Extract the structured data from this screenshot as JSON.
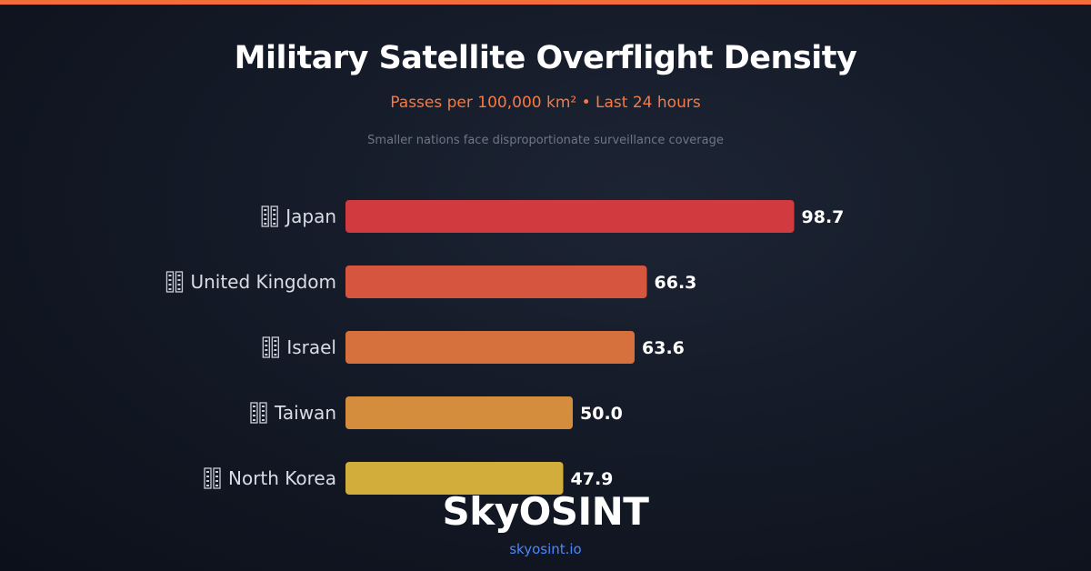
{
  "header": {
    "title": "Military Satellite Overflight Density",
    "subtitle": "Passes per 100,000 km² • Last 24 hours",
    "note": "Smaller nations face disproportionate surveillance coverage"
  },
  "chart_data": {
    "type": "bar",
    "orientation": "horizontal",
    "title": "Military Satellite Overflight Density",
    "subtitle": "Passes per 100,000 km² • Last 24 hours",
    "categories": [
      "Japan",
      "United Kingdom",
      "Israel",
      "Taiwan",
      "North Korea"
    ],
    "values": [
      98.7,
      66.3,
      63.6,
      50.0,
      47.9
    ],
    "value_labels": [
      "98.7",
      "66.3",
      "63.6",
      "50.0",
      "47.9"
    ],
    "colors": [
      "#d13a3f",
      "#d5553f",
      "#d6703d",
      "#d48d3c",
      "#d3ad3b"
    ],
    "flag_icon": "flag-placeholder-icon",
    "grid": false,
    "legend": "none"
  },
  "footer": {
    "brand": "SkyOSINT",
    "url": "skyosint.io"
  },
  "theme": {
    "accent": "#f26d3a",
    "link": "#4f86f7"
  }
}
